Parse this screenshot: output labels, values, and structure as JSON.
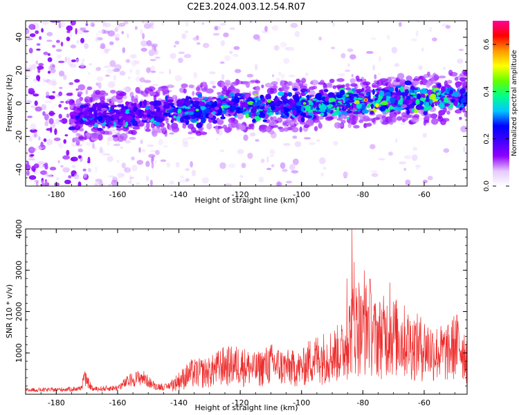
{
  "title": "C2E3.2024.003.12.54.R07",
  "chart_data": [
    {
      "type": "heatmap",
      "xlabel": "Height of straight line (km)",
      "ylabel": "Frequency (Hz)",
      "xlim": [
        -190,
        -46
      ],
      "ylim": [
        -50,
        50
      ],
      "xticks": [
        -180,
        -160,
        -140,
        -120,
        -100,
        -80,
        -60
      ],
      "yticks": [
        -40,
        -20,
        0,
        20,
        40
      ],
      "colorbar": {
        "label": "Normalized spectral amplitude",
        "range": [
          0,
          0.7
        ],
        "ticks": [
          "0.0",
          "0.2",
          "0.4",
          "0.6"
        ],
        "colormap": [
          "#ffffff",
          "#e6c8ff",
          "#8f00ff",
          "#4000ff",
          "#0000ff",
          "#00c8ff",
          "#00ff88",
          "#66ff00",
          "#ffff00",
          "#ff9900",
          "#ff0000",
          "#ff0099"
        ]
      },
      "band": {
        "points": [
          [
            -172,
            -8
          ],
          [
            -160,
            -7
          ],
          [
            -150,
            -6
          ],
          [
            -140,
            -4
          ],
          [
            -130,
            -3
          ],
          [
            -120,
            -1
          ],
          [
            -110,
            -2
          ],
          [
            -100,
            -1
          ],
          [
            -90,
            0
          ],
          [
            -80,
            1
          ],
          [
            -70,
            2
          ],
          [
            -60,
            3
          ],
          [
            -50,
            4
          ],
          [
            -47,
            5
          ]
        ],
        "note_peak_x": -79
      },
      "grid": false
    },
    {
      "type": "line",
      "xlabel": "Height of straight line (km)",
      "ylabel": "SNR (10 * v/v)",
      "xlim": [
        -190,
        -46
      ],
      "ylim": [
        0,
        4000
      ],
      "xticks": [
        -180,
        -160,
        -140,
        -120,
        -100,
        -80,
        -60
      ],
      "yticks": [
        1000,
        2000,
        3000,
        4000
      ],
      "color": "#ee2b2b",
      "envelope": [
        [
          -190,
          150
        ],
        [
          -180,
          160
        ],
        [
          -172,
          200
        ],
        [
          -171,
          600
        ],
        [
          -168,
          180
        ],
        [
          -160,
          230
        ],
        [
          -156,
          500
        ],
        [
          -152,
          620
        ],
        [
          -148,
          300
        ],
        [
          -144,
          250
        ],
        [
          -140,
          550
        ],
        [
          -136,
          850
        ],
        [
          -130,
          900
        ],
        [
          -126,
          1150
        ],
        [
          -120,
          1200
        ],
        [
          -115,
          1000
        ],
        [
          -110,
          1250
        ],
        [
          -106,
          1100
        ],
        [
          -100,
          1050
        ],
        [
          -97,
          1400
        ],
        [
          -94,
          1500
        ],
        [
          -90,
          1600
        ],
        [
          -86,
          1800
        ],
        [
          -84,
          2600
        ],
        [
          -82,
          2800
        ],
        [
          -80,
          2500
        ],
        [
          -78,
          3000
        ],
        [
          -76,
          2300
        ],
        [
          -72,
          2450
        ],
        [
          -68,
          2300
        ],
        [
          -64,
          2000
        ],
        [
          -60,
          1900
        ],
        [
          -56,
          1700
        ],
        [
          -52,
          1700
        ],
        [
          -50,
          2000
        ],
        [
          -48,
          1950
        ],
        [
          -46,
          1500
        ]
      ],
      "spikes": [
        [
          -83.5,
          4000
        ],
        [
          -82.8,
          3200
        ],
        [
          -81.3,
          2700
        ],
        [
          -79.5,
          3000
        ],
        [
          -85.2,
          2800
        ],
        [
          -71.2,
          2700
        ],
        [
          -77.4,
          2450
        ]
      ],
      "grid": false
    }
  ]
}
